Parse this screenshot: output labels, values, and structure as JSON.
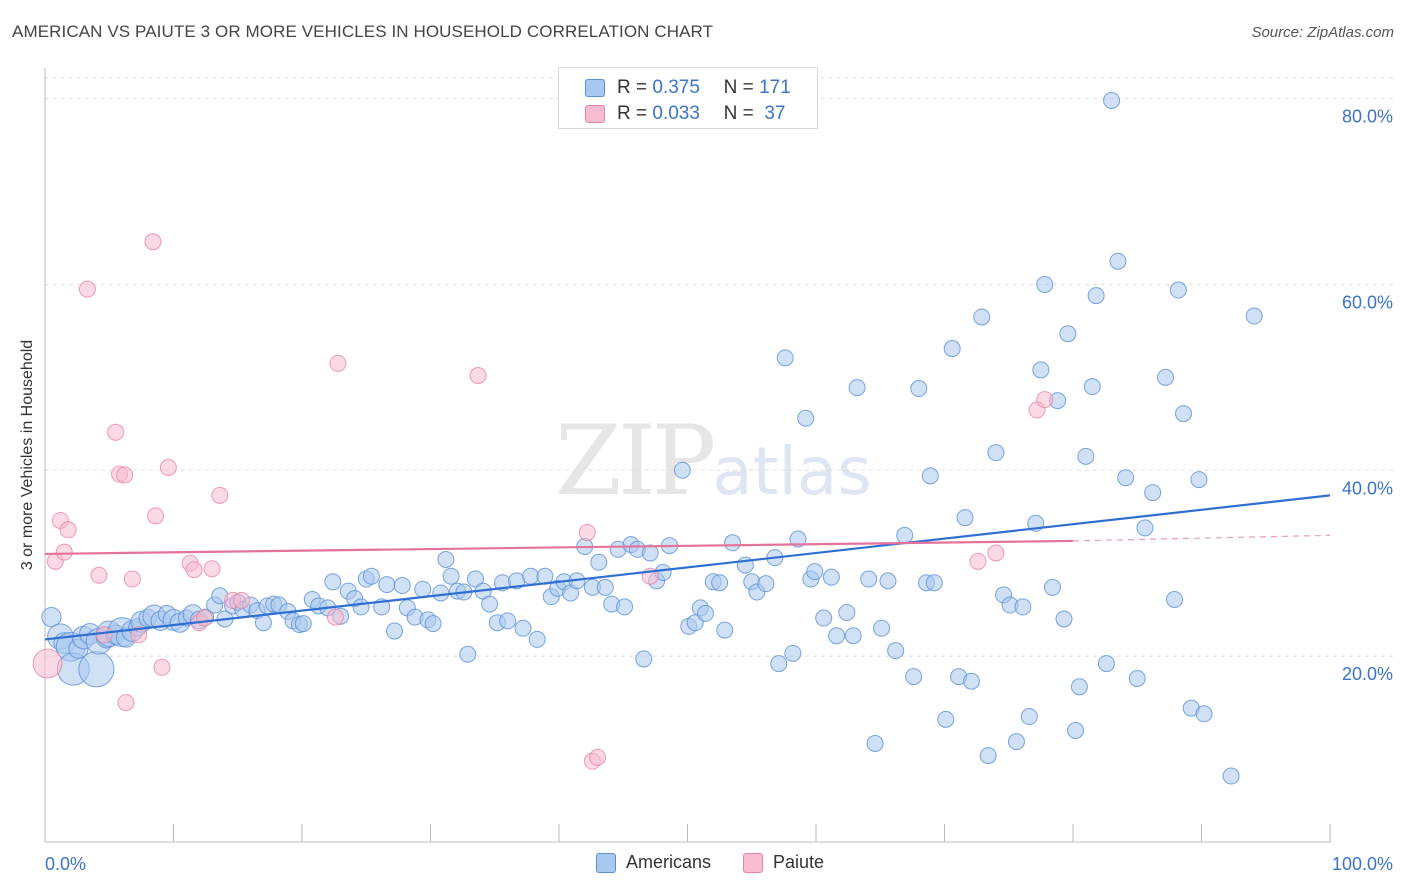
{
  "title": "AMERICAN VS PAIUTE 3 OR MORE VEHICLES IN HOUSEHOLD CORRELATION CHART",
  "source": "Source: ZipAtlas.com",
  "watermark": {
    "zip": "ZIP",
    "atlas": "atlas"
  },
  "legend_top": {
    "americans": {
      "r_label": "R =",
      "r_value": "0.375",
      "n_label": "N =",
      "n_value": "171"
    },
    "paiute": {
      "r_label": "R =",
      "r_value": "0.033",
      "n_label": "N =",
      "n_value": "37"
    }
  },
  "legend_bottom": {
    "americans": "Americans",
    "paiute": "Paiute"
  },
  "colors": {
    "americans_fill": "#a9c8ef",
    "americans_stroke": "#5b8fd6",
    "americans_line": "#2f6fd3",
    "paiute_fill": "#f7bcd0",
    "paiute_stroke": "#e8849f",
    "paiute_line": "#e4739a",
    "tick_label": "#3a74c9",
    "grid": "#dddddd"
  },
  "chart_data": {
    "type": "scatter",
    "title": "AMERICAN VS PAIUTE 3 OR MORE VEHICLES IN HOUSEHOLD CORRELATION CHART",
    "xlabel": "",
    "ylabel": "3 or more Vehicles in Household",
    "xlim": [
      0,
      100
    ],
    "ylim": [
      0,
      82
    ],
    "x_tick_labels": [
      {
        "value": 0,
        "label": "0.0%"
      },
      {
        "value": 100,
        "label": "100.0%"
      }
    ],
    "y_tick_labels": [
      {
        "value": 20,
        "label": "20.0%"
      },
      {
        "value": 40,
        "label": "40.0%"
      },
      {
        "value": 60,
        "label": "60.0%"
      },
      {
        "value": 80,
        "label": "80.0%"
      }
    ],
    "grid": "horizontal dashed",
    "series": [
      {
        "name": "Americans",
        "R": 0.375,
        "N": 171,
        "trend": {
          "x": [
            0,
            100
          ],
          "y": [
            21.8,
            37.3
          ]
        },
        "points": [
          [
            0.5,
            24.2,
            1.2
          ],
          [
            1.2,
            22.1,
            1.6
          ],
          [
            1.5,
            21.4,
            1.3
          ],
          [
            2.0,
            21.0,
            1.8
          ],
          [
            2.2,
            18.6,
            2.0
          ],
          [
            2.6,
            20.8,
            1.2
          ],
          [
            3.0,
            22.0,
            1.4
          ],
          [
            3.5,
            22.4,
            1.3
          ],
          [
            4.0,
            18.6,
            2.2
          ],
          [
            4.2,
            21.6,
            1.6
          ],
          [
            4.8,
            22.0,
            1.3
          ],
          [
            5.0,
            22.4,
            1.6
          ],
          [
            5.5,
            22.3,
            1.2
          ],
          [
            6.0,
            22.6,
            1.8
          ],
          [
            6.3,
            22.0,
            1.2
          ],
          [
            6.8,
            22.7,
            1.3
          ],
          [
            7.2,
            23.1,
            1.1
          ],
          [
            7.5,
            23.7,
            1.3
          ],
          [
            8.0,
            24.1,
            1.1
          ],
          [
            8.5,
            24.3,
            1.4
          ],
          [
            9.0,
            23.8,
            1.2
          ],
          [
            9.5,
            24.5,
            1.1
          ],
          [
            10.0,
            23.9,
            1.3
          ],
          [
            10.5,
            23.6,
            1.2
          ],
          [
            11.0,
            24.1,
            1.0
          ],
          [
            11.5,
            24.5,
            1.2
          ],
          [
            12.0,
            23.9,
            1.1
          ],
          [
            12.5,
            24.2,
            1.0
          ],
          [
            13.2,
            25.5,
            1.0
          ],
          [
            13.6,
            26.5,
            1.0
          ],
          [
            14.0,
            24.0,
            1.0
          ],
          [
            14.6,
            25.4,
            1.0
          ],
          [
            15.0,
            25.8,
            1.0
          ],
          [
            15.4,
            25.0,
            1.0
          ],
          [
            16.0,
            25.5,
            1.0
          ],
          [
            16.5,
            24.9,
            1.0
          ],
          [
            17.0,
            23.6,
            1.0
          ],
          [
            17.3,
            25.4,
            1.0
          ],
          [
            17.8,
            25.6,
            1.0
          ],
          [
            18.2,
            25.5,
            1.0
          ],
          [
            18.9,
            24.8,
            1.0
          ],
          [
            19.3,
            23.8,
            1.0
          ],
          [
            19.8,
            23.4,
            1.0
          ],
          [
            20.1,
            23.5,
            1.0
          ],
          [
            20.8,
            26.1,
            1.0
          ],
          [
            21.3,
            25.4,
            1.0
          ],
          [
            22.0,
            25.2,
            1.0
          ],
          [
            22.4,
            28.0,
            1.0
          ],
          [
            23.0,
            24.3,
            1.0
          ],
          [
            23.6,
            27.0,
            1.0
          ],
          [
            24.1,
            26.2,
            1.0
          ],
          [
            24.6,
            25.3,
            1.0
          ],
          [
            25.0,
            28.3,
            1.0
          ],
          [
            25.4,
            28.6,
            1.0
          ],
          [
            26.2,
            25.3,
            1.0
          ],
          [
            26.6,
            27.7,
            1.0
          ],
          [
            27.2,
            22.7,
            1.0
          ],
          [
            27.8,
            27.6,
            1.0
          ],
          [
            28.2,
            25.2,
            1.0
          ],
          [
            28.8,
            24.2,
            1.0
          ],
          [
            29.4,
            27.2,
            1.0
          ],
          [
            29.8,
            23.9,
            1.0
          ],
          [
            30.2,
            23.5,
            1.0
          ],
          [
            30.8,
            26.8,
            1.0
          ],
          [
            31.2,
            30.4,
            1.0
          ],
          [
            31.6,
            28.6,
            1.0
          ],
          [
            32.1,
            27.0,
            1.0
          ],
          [
            32.6,
            26.9,
            1.0
          ],
          [
            32.9,
            20.2,
            1.0
          ],
          [
            33.5,
            28.3,
            1.0
          ],
          [
            34.1,
            27.0,
            1.0
          ],
          [
            34.6,
            25.6,
            1.0
          ],
          [
            35.2,
            23.6,
            1.0
          ],
          [
            35.6,
            27.9,
            1.0
          ],
          [
            36.0,
            23.8,
            1.0
          ],
          [
            36.7,
            28.1,
            1.0
          ],
          [
            37.2,
            23.0,
            1.0
          ],
          [
            37.8,
            28.6,
            1.0
          ],
          [
            38.3,
            21.8,
            1.0
          ],
          [
            38.9,
            28.6,
            1.0
          ],
          [
            39.4,
            26.4,
            1.0
          ],
          [
            39.9,
            27.3,
            1.0
          ],
          [
            40.4,
            28.0,
            1.0
          ],
          [
            40.9,
            26.8,
            1.0
          ],
          [
            41.4,
            28.1,
            1.0
          ],
          [
            42.0,
            31.8,
            1.0
          ],
          [
            42.6,
            27.4,
            1.0
          ],
          [
            43.1,
            30.1,
            1.0
          ],
          [
            43.6,
            27.4,
            1.0
          ],
          [
            44.1,
            25.6,
            1.0
          ],
          [
            44.6,
            31.5,
            1.0
          ],
          [
            45.1,
            25.3,
            1.0
          ],
          [
            45.6,
            32.0,
            1.0
          ],
          [
            46.1,
            31.5,
            1.0
          ],
          [
            46.6,
            19.7,
            1.0
          ],
          [
            47.1,
            31.1,
            1.0
          ],
          [
            47.6,
            28.1,
            1.0
          ],
          [
            48.1,
            29.0,
            1.0
          ],
          [
            48.6,
            31.9,
            1.0
          ],
          [
            49.6,
            40.0,
            1.0
          ],
          [
            50.1,
            23.2,
            1.0
          ],
          [
            50.6,
            23.6,
            1.0
          ],
          [
            51.0,
            25.2,
            1.0
          ],
          [
            51.4,
            24.6,
            1.0
          ],
          [
            52.0,
            28.0,
            1.0
          ],
          [
            52.5,
            27.9,
            1.0
          ],
          [
            52.9,
            22.8,
            1.0
          ],
          [
            53.5,
            32.2,
            1.0
          ],
          [
            54.5,
            29.8,
            1.0
          ],
          [
            55.0,
            28.0,
            1.0
          ],
          [
            55.4,
            26.9,
            1.0
          ],
          [
            56.1,
            27.8,
            1.0
          ],
          [
            56.8,
            30.6,
            1.0
          ],
          [
            57.1,
            19.2,
            1.0
          ],
          [
            57.6,
            52.1,
            1.0
          ],
          [
            58.2,
            20.3,
            1.0
          ],
          [
            58.6,
            32.6,
            1.0
          ],
          [
            59.2,
            45.6,
            1.0
          ],
          [
            59.6,
            28.3,
            1.0
          ],
          [
            59.9,
            29.1,
            1.0
          ],
          [
            60.6,
            24.1,
            1.0
          ],
          [
            61.2,
            28.5,
            1.0
          ],
          [
            61.6,
            22.2,
            1.0
          ],
          [
            62.4,
            24.7,
            1.0
          ],
          [
            62.9,
            22.2,
            1.0
          ],
          [
            63.2,
            48.9,
            1.0
          ],
          [
            64.1,
            28.3,
            1.0
          ],
          [
            64.6,
            10.6,
            1.0
          ],
          [
            65.1,
            23.0,
            1.0
          ],
          [
            65.6,
            28.1,
            1.0
          ],
          [
            66.2,
            20.6,
            1.0
          ],
          [
            66.9,
            33.0,
            1.0
          ],
          [
            67.6,
            17.8,
            1.0
          ],
          [
            68.0,
            48.8,
            1.0
          ],
          [
            68.6,
            27.9,
            1.0
          ],
          [
            68.9,
            39.4,
            1.0
          ],
          [
            69.2,
            27.9,
            1.0
          ],
          [
            70.1,
            13.2,
            1.0
          ],
          [
            70.6,
            53.1,
            1.0
          ],
          [
            71.1,
            17.8,
            1.0
          ],
          [
            71.6,
            34.9,
            1.0
          ],
          [
            72.1,
            17.3,
            1.0
          ],
          [
            72.9,
            56.5,
            1.0
          ],
          [
            73.4,
            9.3,
            1.0
          ],
          [
            74.0,
            41.9,
            1.0
          ],
          [
            74.6,
            26.6,
            1.0
          ],
          [
            75.1,
            25.5,
            1.0
          ],
          [
            75.6,
            10.8,
            1.0
          ],
          [
            76.1,
            25.3,
            1.0
          ],
          [
            76.6,
            13.5,
            1.0
          ],
          [
            77.1,
            34.3,
            1.0
          ],
          [
            77.5,
            50.8,
            1.0
          ],
          [
            77.8,
            60.0,
            1.0
          ],
          [
            78.4,
            27.4,
            1.0
          ],
          [
            78.8,
            47.5,
            1.0
          ],
          [
            79.3,
            24.0,
            1.0
          ],
          [
            79.6,
            54.7,
            1.0
          ],
          [
            80.2,
            12.0,
            1.0
          ],
          [
            80.5,
            16.7,
            1.0
          ],
          [
            81.0,
            41.5,
            1.0
          ],
          [
            81.5,
            49.0,
            1.0
          ],
          [
            81.8,
            58.8,
            1.0
          ],
          [
            82.6,
            19.2,
            1.0
          ],
          [
            83.0,
            79.8,
            1.0
          ],
          [
            83.5,
            62.5,
            1.0
          ],
          [
            84.1,
            39.2,
            1.0
          ],
          [
            85.0,
            17.6,
            1.0
          ],
          [
            85.6,
            33.8,
            1.0
          ],
          [
            86.2,
            37.6,
            1.0
          ],
          [
            87.2,
            50.0,
            1.0
          ],
          [
            87.9,
            26.1,
            1.0
          ],
          [
            88.2,
            59.4,
            1.0
          ],
          [
            88.6,
            46.1,
            1.0
          ],
          [
            89.2,
            14.4,
            1.0
          ],
          [
            89.8,
            39.0,
            1.0
          ],
          [
            90.2,
            13.8,
            1.0
          ],
          [
            92.3,
            7.1,
            1.0
          ],
          [
            94.1,
            56.6,
            1.0
          ]
        ]
      },
      {
        "name": "Paiute",
        "R": 0.033,
        "N": 37,
        "trend": {
          "x": [
            0,
            80
          ],
          "y": [
            31.0,
            32.4
          ],
          "dashed_extension": {
            "x": [
              80,
              100
            ],
            "y": [
              32.4,
              33.0
            ]
          }
        },
        "points": [
          [
            0.2,
            19.2,
            1.8
          ],
          [
            0.8,
            30.2,
            1.0
          ],
          [
            1.2,
            34.6,
            1.0
          ],
          [
            1.5,
            31.2,
            1.0
          ],
          [
            1.8,
            33.6,
            1.0
          ],
          [
            3.3,
            59.5,
            1.0
          ],
          [
            4.2,
            28.7,
            1.0
          ],
          [
            4.6,
            22.3,
            1.0
          ],
          [
            5.5,
            44.1,
            1.0
          ],
          [
            5.8,
            39.6,
            1.0
          ],
          [
            6.2,
            39.5,
            1.0
          ],
          [
            6.3,
            15.0,
            1.0
          ],
          [
            6.8,
            28.3,
            1.0
          ],
          [
            7.3,
            22.3,
            1.0
          ],
          [
            8.4,
            64.6,
            1.0
          ],
          [
            8.6,
            35.1,
            1.0
          ],
          [
            9.1,
            18.8,
            1.0
          ],
          [
            9.6,
            40.3,
            1.0
          ],
          [
            11.3,
            30.0,
            1.0
          ],
          [
            11.6,
            29.3,
            1.0
          ],
          [
            12.0,
            23.6,
            1.0
          ],
          [
            12.4,
            24.1,
            1.0
          ],
          [
            13.0,
            29.4,
            1.0
          ],
          [
            13.6,
            37.3,
            1.0
          ],
          [
            14.6,
            26.0,
            1.0
          ],
          [
            15.3,
            26.0,
            1.0
          ],
          [
            22.6,
            24.2,
            1.0
          ],
          [
            22.8,
            51.5,
            1.0
          ],
          [
            33.7,
            50.2,
            1.0
          ],
          [
            42.2,
            33.3,
            1.0
          ],
          [
            42.6,
            8.7,
            1.0
          ],
          [
            43.0,
            9.1,
            1.0
          ],
          [
            47.1,
            28.6,
            1.0
          ],
          [
            72.6,
            30.2,
            1.0
          ],
          [
            74.0,
            31.1,
            1.0
          ],
          [
            77.2,
            46.5,
            1.0
          ],
          [
            77.8,
            47.6,
            1.0
          ]
        ]
      }
    ]
  }
}
